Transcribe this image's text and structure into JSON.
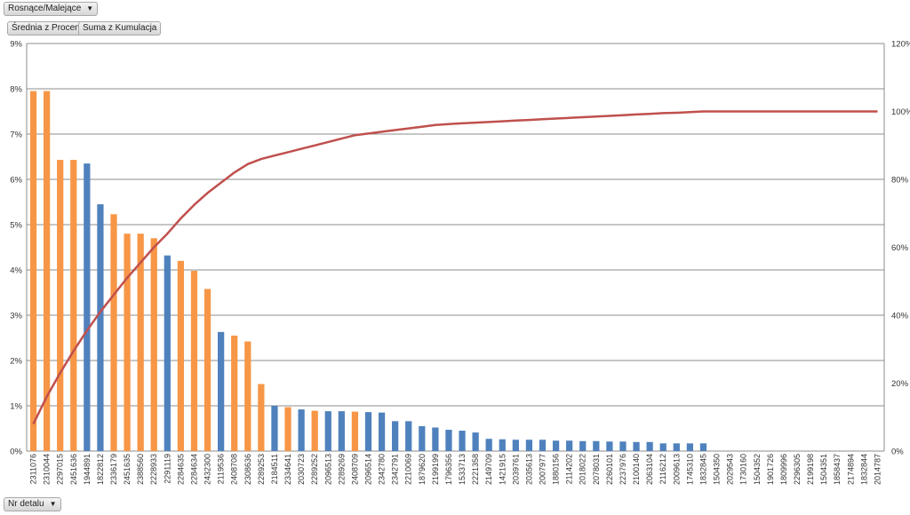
{
  "filters": {
    "sort_label": "Rosnące/Malejące",
    "measure1_label": "Średnia z Procent",
    "measure2_label": "Suma z Kumulacja",
    "axis_field_label": "Nr detalu"
  },
  "chart_data": {
    "type": "bar",
    "title": "",
    "xlabel": "",
    "ylabel": "",
    "ylim": [
      0,
      9
    ],
    "y2lim": [
      0,
      120
    ],
    "grid": true,
    "categories": [
      "2311076",
      "2310044",
      "2297015",
      "2451636",
      "1944891",
      "1822812",
      "2336179",
      "2451635",
      "2388560",
      "2228933",
      "2291119",
      "2284635",
      "2284634",
      "2432300",
      "2119536",
      "2408708",
      "2308636",
      "2289253",
      "2184511",
      "2334641",
      "2030723",
      "2289252",
      "2096513",
      "2289269",
      "2408709",
      "2096514",
      "2342780",
      "2342791",
      "2210069",
      "1879620",
      "2199199",
      "1796356",
      "1533713",
      "2221358",
      "2149709",
      "1421915",
      "2039761",
      "2035613",
      "2007977",
      "1880156",
      "2114202",
      "2018022",
      "2078031",
      "2260101",
      "2237976",
      "2100140",
      "2063104",
      "2116212",
      "2009613",
      "1745310",
      "1832845",
      "1504350",
      "2029543",
      "1730160",
      "1504352",
      "1901726",
      "1809996",
      "2296305",
      "2199198",
      "1504351",
      "1858437",
      "2174894",
      "1832844",
      "2014787"
    ],
    "series": [
      {
        "name": "",
        "type": "bar",
        "axis": "left",
        "unit": "%",
        "values": [
          7.95,
          7.95,
          6.43,
          6.43,
          6.35,
          5.45,
          5.23,
          4.8,
          4.8,
          4.7,
          4.32,
          4.2,
          3.98,
          3.58,
          2.63,
          2.55,
          2.42,
          1.48,
          1.0,
          0.97,
          0.92,
          0.89,
          0.88,
          0.88,
          0.87,
          0.86,
          0.85,
          0.66,
          0.66,
          0.55,
          0.52,
          0.47,
          0.45,
          0.41,
          0.27,
          0.26,
          0.25,
          0.25,
          0.25,
          0.23,
          0.23,
          0.22,
          0.22,
          0.21,
          0.21,
          0.2,
          0.2,
          0.17,
          0.17,
          0.17,
          0.17,
          0,
          0,
          0,
          0,
          0,
          0,
          0,
          0,
          0,
          0,
          0,
          0,
          0
        ],
        "colors": [
          "#f79646",
          "#f79646",
          "#f79646",
          "#f79646",
          "#4f81bd",
          "#4f81bd",
          "#f79646",
          "#f79646",
          "#f79646",
          "#f79646",
          "#4f81bd",
          "#f79646",
          "#f79646",
          "#f79646",
          "#4f81bd",
          "#f79646",
          "#f79646",
          "#f79646",
          "#4f81bd",
          "#f79646",
          "#4f81bd",
          "#f79646",
          "#4f81bd",
          "#4f81bd",
          "#f79646",
          "#4f81bd",
          "#4f81bd",
          "#4f81bd",
          "#4f81bd",
          "#4f81bd",
          "#4f81bd",
          "#4f81bd",
          "#4f81bd",
          "#4f81bd",
          "#4f81bd",
          "#4f81bd",
          "#4f81bd",
          "#4f81bd",
          "#4f81bd",
          "#4f81bd",
          "#4f81bd",
          "#4f81bd",
          "#4f81bd",
          "#4f81bd",
          "#4f81bd",
          "#4f81bd",
          "#4f81bd",
          "#4f81bd",
          "#4f81bd",
          "#4f81bd",
          "#4f81bd",
          "#4f81bd",
          "#4f81bd",
          "#4f81bd",
          "#4f81bd",
          "#4f81bd",
          "#4f81bd",
          "#4f81bd",
          "#4f81bd",
          "#4f81bd",
          "#4f81bd",
          "#4f81bd",
          "#4f81bd",
          "#4f81bd"
        ]
      },
      {
        "name": "",
        "type": "line",
        "axis": "right",
        "unit": "%",
        "color": "#c0504d",
        "values": [
          8,
          16,
          23,
          29.5,
          35.5,
          41,
          46,
          51,
          55.5,
          60,
          64,
          68.5,
          72.5,
          76,
          79,
          82,
          84.5,
          86,
          87,
          88,
          89,
          90,
          91,
          92,
          93,
          93.5,
          94,
          94.5,
          95,
          95.5,
          96,
          96.3,
          96.5,
          96.7,
          96.9,
          97.1,
          97.3,
          97.5,
          97.7,
          97.9,
          98.1,
          98.3,
          98.5,
          98.7,
          98.9,
          99.1,
          99.3,
          99.5,
          99.6,
          99.8,
          100,
          100,
          100,
          100,
          100,
          100,
          100,
          100,
          100,
          100,
          100,
          100,
          100,
          100
        ]
      }
    ],
    "yticks": [
      "0%",
      "1%",
      "2%",
      "3%",
      "4%",
      "5%",
      "6%",
      "7%",
      "8%",
      "9%"
    ],
    "y2ticks": [
      "0%",
      "20%",
      "40%",
      "60%",
      "80%",
      "100%",
      "120%"
    ]
  }
}
